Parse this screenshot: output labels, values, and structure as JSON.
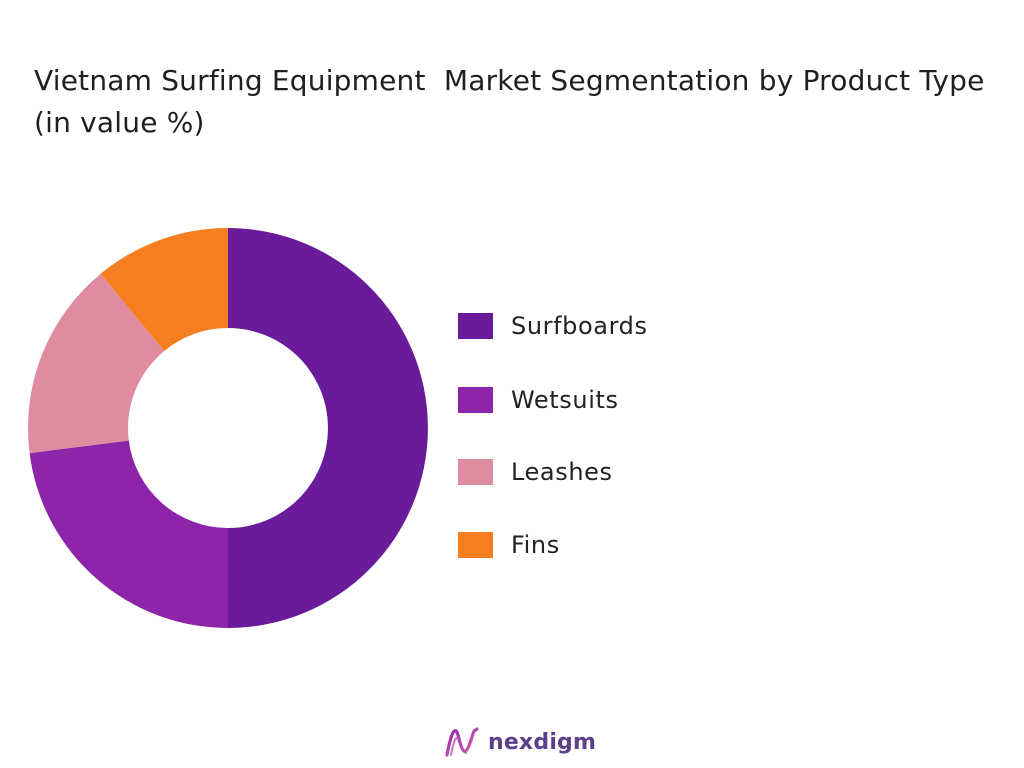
{
  "chart_data": {
    "type": "pie",
    "title": "Vietnam Surfing Equipment  Market Segmentation by Product Type  (in value %)",
    "categories": [
      "Surfboards",
      "Wetsuits",
      "Leashes",
      "Fins"
    ],
    "values": [
      50,
      23,
      16,
      11
    ],
    "colors": [
      "#6a1b9a",
      "#8e24aa",
      "#e08ca0",
      "#f57f20"
    ],
    "donut": true,
    "legend_position": "right"
  },
  "brand": {
    "name": "nexdigm"
  }
}
